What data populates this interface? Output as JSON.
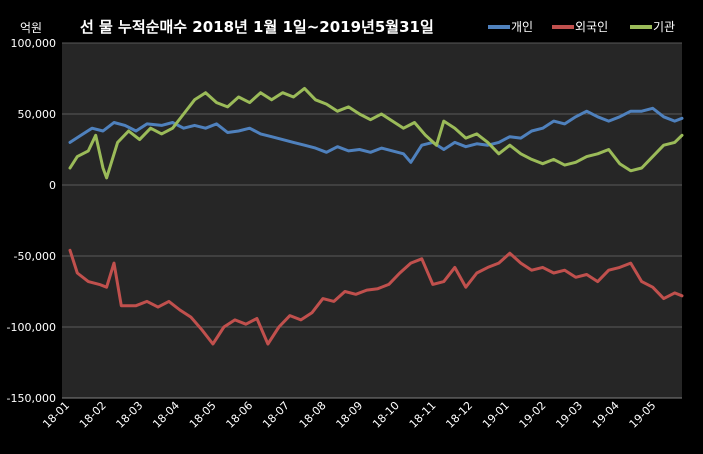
{
  "chart_data": {
    "type": "line",
    "title": "선 물 누적순매수  2018년 1월 1일~2019년5월31일",
    "unit_label": "억원",
    "ylim": [
      -150000,
      100000
    ],
    "yticks": [
      {
        "value": 100000,
        "label": "100,000"
      },
      {
        "value": 50000,
        "label": "50,000"
      },
      {
        "value": 0,
        "label": "0"
      },
      {
        "value": -50000,
        "label": "-50,000"
      },
      {
        "value": -100000,
        "label": "-100,000"
      },
      {
        "value": -150000,
        "label": "-150,000"
      }
    ],
    "x_categories": [
      "18-01",
      "18-02",
      "18-03",
      "18-04",
      "18-05",
      "18-06",
      "18-07",
      "18-08",
      "18-09",
      "18-10",
      "18-11",
      "18-12",
      "19-01",
      "19-02",
      "19-03",
      "19-04",
      "19-05"
    ],
    "legend_position": "top-right",
    "series": [
      {
        "name": "개인",
        "color": "#4F81BD",
        "values": [
          [
            0,
            30000
          ],
          [
            0.3,
            35000
          ],
          [
            0.6,
            40000
          ],
          [
            0.9,
            38000
          ],
          [
            1.2,
            44000
          ],
          [
            1.5,
            42000
          ],
          [
            1.8,
            38000
          ],
          [
            2.1,
            43000
          ],
          [
            2.5,
            42000
          ],
          [
            2.8,
            44000
          ],
          [
            3.1,
            40000
          ],
          [
            3.4,
            42000
          ],
          [
            3.7,
            40000
          ],
          [
            4.0,
            43000
          ],
          [
            4.3,
            37000
          ],
          [
            4.6,
            38000
          ],
          [
            4.9,
            40000
          ],
          [
            5.2,
            36000
          ],
          [
            5.5,
            34000
          ],
          [
            5.8,
            32000
          ],
          [
            6.1,
            30000
          ],
          [
            6.4,
            28000
          ],
          [
            6.7,
            26000
          ],
          [
            7.0,
            23000
          ],
          [
            7.3,
            27000
          ],
          [
            7.6,
            24000
          ],
          [
            7.9,
            25000
          ],
          [
            8.2,
            23000
          ],
          [
            8.5,
            26000
          ],
          [
            8.8,
            24000
          ],
          [
            9.1,
            22000
          ],
          [
            9.3,
            16000
          ],
          [
            9.6,
            28000
          ],
          [
            9.9,
            30000
          ],
          [
            10.2,
            25000
          ],
          [
            10.5,
            30000
          ],
          [
            10.8,
            27000
          ],
          [
            11.1,
            29000
          ],
          [
            11.4,
            28000
          ],
          [
            11.7,
            30000
          ],
          [
            12.0,
            34000
          ],
          [
            12.3,
            33000
          ],
          [
            12.6,
            38000
          ],
          [
            12.9,
            40000
          ],
          [
            13.2,
            45000
          ],
          [
            13.5,
            43000
          ],
          [
            13.8,
            48000
          ],
          [
            14.1,
            52000
          ],
          [
            14.4,
            48000
          ],
          [
            14.7,
            45000
          ],
          [
            15.0,
            48000
          ],
          [
            15.3,
            52000
          ],
          [
            15.6,
            52000
          ],
          [
            15.9,
            54000
          ],
          [
            16.2,
            48000
          ],
          [
            16.5,
            45000
          ],
          [
            16.7,
            47000
          ]
        ]
      },
      {
        "name": "외국인",
        "color": "#C0504D",
        "values": [
          [
            0,
            -46000
          ],
          [
            0.2,
            -62000
          ],
          [
            0.5,
            -68000
          ],
          [
            0.8,
            -70000
          ],
          [
            1.0,
            -72000
          ],
          [
            1.2,
            -55000
          ],
          [
            1.4,
            -85000
          ],
          [
            1.8,
            -85000
          ],
          [
            2.1,
            -82000
          ],
          [
            2.4,
            -86000
          ],
          [
            2.7,
            -82000
          ],
          [
            3.0,
            -88000
          ],
          [
            3.3,
            -93000
          ],
          [
            3.6,
            -102000
          ],
          [
            3.9,
            -112000
          ],
          [
            4.2,
            -100000
          ],
          [
            4.5,
            -95000
          ],
          [
            4.8,
            -98000
          ],
          [
            5.1,
            -94000
          ],
          [
            5.4,
            -112000
          ],
          [
            5.7,
            -100000
          ],
          [
            6.0,
            -92000
          ],
          [
            6.3,
            -95000
          ],
          [
            6.6,
            -90000
          ],
          [
            6.9,
            -80000
          ],
          [
            7.2,
            -82000
          ],
          [
            7.5,
            -75000
          ],
          [
            7.8,
            -77000
          ],
          [
            8.1,
            -74000
          ],
          [
            8.4,
            -73000
          ],
          [
            8.7,
            -70000
          ],
          [
            9.0,
            -62000
          ],
          [
            9.3,
            -55000
          ],
          [
            9.6,
            -52000
          ],
          [
            9.9,
            -70000
          ],
          [
            10.2,
            -68000
          ],
          [
            10.5,
            -58000
          ],
          [
            10.8,
            -72000
          ],
          [
            11.1,
            -62000
          ],
          [
            11.4,
            -58000
          ],
          [
            11.7,
            -55000
          ],
          [
            12.0,
            -48000
          ],
          [
            12.3,
            -55000
          ],
          [
            12.6,
            -60000
          ],
          [
            12.9,
            -58000
          ],
          [
            13.2,
            -62000
          ],
          [
            13.5,
            -60000
          ],
          [
            13.8,
            -65000
          ],
          [
            14.1,
            -63000
          ],
          [
            14.4,
            -68000
          ],
          [
            14.7,
            -60000
          ],
          [
            15.0,
            -58000
          ],
          [
            15.3,
            -55000
          ],
          [
            15.6,
            -68000
          ],
          [
            15.9,
            -72000
          ],
          [
            16.2,
            -80000
          ],
          [
            16.5,
            -76000
          ],
          [
            16.7,
            -78000
          ]
        ]
      },
      {
        "name": "기관",
        "color": "#9BBB59",
        "values": [
          [
            0,
            12000
          ],
          [
            0.2,
            20000
          ],
          [
            0.5,
            24000
          ],
          [
            0.7,
            35000
          ],
          [
            0.9,
            12000
          ],
          [
            1.0,
            5000
          ],
          [
            1.3,
            30000
          ],
          [
            1.6,
            38000
          ],
          [
            1.9,
            32000
          ],
          [
            2.2,
            40000
          ],
          [
            2.5,
            36000
          ],
          [
            2.8,
            40000
          ],
          [
            3.1,
            50000
          ],
          [
            3.4,
            60000
          ],
          [
            3.7,
            65000
          ],
          [
            4.0,
            58000
          ],
          [
            4.3,
            55000
          ],
          [
            4.6,
            62000
          ],
          [
            4.9,
            58000
          ],
          [
            5.2,
            65000
          ],
          [
            5.5,
            60000
          ],
          [
            5.8,
            65000
          ],
          [
            6.1,
            62000
          ],
          [
            6.4,
            68000
          ],
          [
            6.7,
            60000
          ],
          [
            7.0,
            57000
          ],
          [
            7.3,
            52000
          ],
          [
            7.6,
            55000
          ],
          [
            7.9,
            50000
          ],
          [
            8.2,
            46000
          ],
          [
            8.5,
            50000
          ],
          [
            8.8,
            45000
          ],
          [
            9.1,
            40000
          ],
          [
            9.4,
            44000
          ],
          [
            9.7,
            35000
          ],
          [
            10.0,
            28000
          ],
          [
            10.2,
            45000
          ],
          [
            10.5,
            40000
          ],
          [
            10.8,
            33000
          ],
          [
            11.1,
            36000
          ],
          [
            11.4,
            30000
          ],
          [
            11.7,
            22000
          ],
          [
            12.0,
            28000
          ],
          [
            12.3,
            22000
          ],
          [
            12.6,
            18000
          ],
          [
            12.9,
            15000
          ],
          [
            13.2,
            18000
          ],
          [
            13.5,
            14000
          ],
          [
            13.8,
            16000
          ],
          [
            14.1,
            20000
          ],
          [
            14.4,
            22000
          ],
          [
            14.7,
            25000
          ],
          [
            15.0,
            15000
          ],
          [
            15.3,
            10000
          ],
          [
            15.6,
            12000
          ],
          [
            15.9,
            20000
          ],
          [
            16.2,
            28000
          ],
          [
            16.5,
            30000
          ],
          [
            16.7,
            35000
          ]
        ]
      }
    ]
  }
}
